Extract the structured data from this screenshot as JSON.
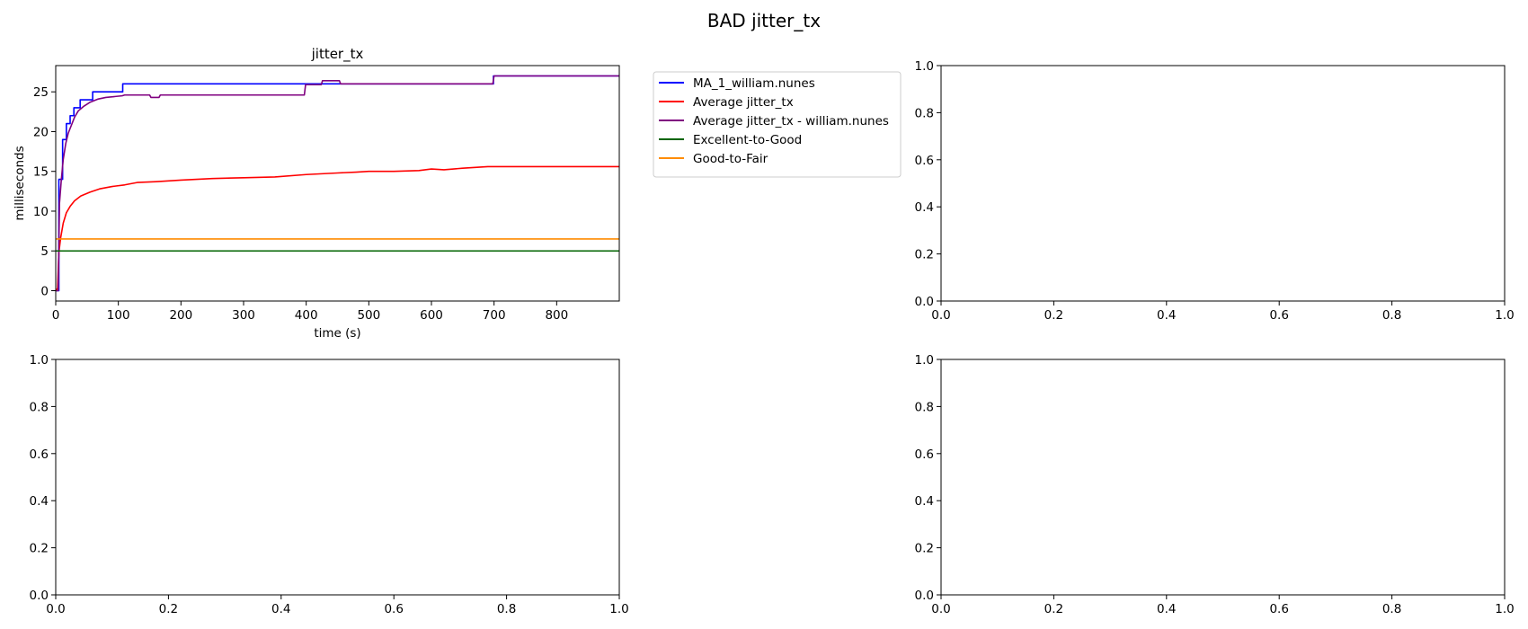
{
  "figure": {
    "suptitle": "BAD jitter_tx"
  },
  "chart_data": [
    {
      "type": "line",
      "title": "jitter_tx",
      "xlabel": "time (s)",
      "ylabel": "milliseconds",
      "xlim": [
        0,
        900
      ],
      "ylim": [
        -1.3,
        28.3
      ],
      "xticks": [
        0,
        100,
        200,
        300,
        400,
        500,
        600,
        700,
        800
      ],
      "yticks": [
        0,
        5,
        10,
        15,
        20,
        25
      ],
      "grid": false,
      "legend": {
        "placement": "outside-right"
      },
      "series": [
        {
          "name": "MA_1_william.nunes",
          "color": "#0000ff",
          "step": true,
          "points": [
            [
              0,
              0
            ],
            [
              4,
              0
            ],
            [
              5,
              14
            ],
            [
              10,
              14
            ],
            [
              11,
              19
            ],
            [
              16,
              19
            ],
            [
              17,
              21
            ],
            [
              22,
              21
            ],
            [
              23,
              22
            ],
            [
              28,
              22
            ],
            [
              29,
              23
            ],
            [
              38,
              23
            ],
            [
              39,
              24
            ],
            [
              58,
              24
            ],
            [
              59,
              25
            ],
            [
              106,
              25
            ],
            [
              107,
              26
            ],
            [
              450,
              26
            ],
            [
              451,
              26
            ],
            [
              698,
              26
            ],
            [
              699,
              27
            ],
            [
              900,
              27
            ]
          ]
        },
        {
          "name": "Average jitter_tx",
          "color": "#ff0000",
          "step": false,
          "points": [
            [
              0,
              0
            ],
            [
              3,
              0.3
            ],
            [
              5,
              4.8
            ],
            [
              8,
              6.7
            ],
            [
              12,
              8.5
            ],
            [
              17,
              9.8
            ],
            [
              23,
              10.6
            ],
            [
              30,
              11.3
            ],
            [
              40,
              11.9
            ],
            [
              55,
              12.4
            ],
            [
              70,
              12.8
            ],
            [
              90,
              13.1
            ],
            [
              110,
              13.3
            ],
            [
              130,
              13.6
            ],
            [
              160,
              13.7
            ],
            [
              200,
              13.9
            ],
            [
              250,
              14.1
            ],
            [
              300,
              14.2
            ],
            [
              350,
              14.3
            ],
            [
              400,
              14.6
            ],
            [
              450,
              14.8
            ],
            [
              480,
              14.9
            ],
            [
              500,
              15.0
            ],
            [
              540,
              15.0
            ],
            [
              580,
              15.1
            ],
            [
              600,
              15.3
            ],
            [
              620,
              15.2
            ],
            [
              650,
              15.4
            ],
            [
              690,
              15.6
            ],
            [
              750,
              15.6
            ],
            [
              800,
              15.6
            ],
            [
              850,
              15.6
            ],
            [
              900,
              15.6
            ]
          ]
        },
        {
          "name": "Average jitter_tx - william.nunes",
          "color": "#800080",
          "step": false,
          "points": [
            [
              0,
              0
            ],
            [
              4,
              0
            ],
            [
              6,
              11
            ],
            [
              9,
              14
            ],
            [
              12,
              16.5
            ],
            [
              16,
              18.5
            ],
            [
              20,
              19.8
            ],
            [
              25,
              20.8
            ],
            [
              30,
              21.8
            ],
            [
              36,
              22.6
            ],
            [
              45,
              23.2
            ],
            [
              55,
              23.7
            ],
            [
              68,
              24.1
            ],
            [
              80,
              24.3
            ],
            [
              106,
              24.5
            ],
            [
              110,
              24.6
            ],
            [
              150,
              24.6
            ],
            [
              152,
              24.3
            ],
            [
              165,
              24.3
            ],
            [
              167,
              24.6
            ],
            [
              397,
              24.6
            ],
            [
              399,
              25.9
            ],
            [
              424,
              25.9
            ],
            [
              426,
              26.4
            ],
            [
              453,
              26.4
            ],
            [
              455,
              26.0
            ],
            [
              698,
              26.0
            ],
            [
              700,
              27.0
            ],
            [
              900,
              27.0
            ]
          ]
        },
        {
          "name": "Excellent-to-Good",
          "color": "#006400",
          "step": false,
          "points": [
            [
              0,
              5
            ],
            [
              900,
              5
            ]
          ]
        },
        {
          "name": "Good-to-Fair",
          "color": "#ff8c00",
          "step": false,
          "points": [
            [
              0,
              6.5
            ],
            [
              900,
              6.5
            ]
          ]
        }
      ]
    },
    {
      "type": "line",
      "empty": true,
      "xlim": [
        0,
        1
      ],
      "ylim": [
        0,
        1
      ],
      "xticks": [
        "0.0",
        "0.2",
        "0.4",
        "0.6",
        "0.8",
        "1.0"
      ],
      "yticks": [
        "0.0",
        "0.2",
        "0.4",
        "0.6",
        "0.8",
        "1.0"
      ],
      "series": []
    },
    {
      "type": "line",
      "empty": true,
      "xlim": [
        0,
        1
      ],
      "ylim": [
        0,
        1
      ],
      "xticks": [
        "0.0",
        "0.2",
        "0.4",
        "0.6",
        "0.8",
        "1.0"
      ],
      "yticks": [
        "0.0",
        "0.2",
        "0.4",
        "0.6",
        "0.8",
        "1.0"
      ],
      "series": []
    },
    {
      "type": "line",
      "empty": true,
      "xlim": [
        0,
        1
      ],
      "ylim": [
        0,
        1
      ],
      "xticks": [
        "0.0",
        "0.2",
        "0.4",
        "0.6",
        "0.8",
        "1.0"
      ],
      "yticks": [
        "0.0",
        "0.2",
        "0.4",
        "0.6",
        "0.8",
        "1.0"
      ],
      "series": []
    }
  ]
}
